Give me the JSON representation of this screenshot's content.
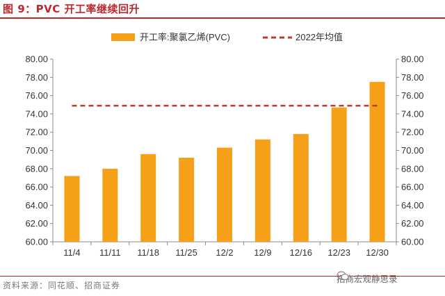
{
  "header": {
    "title": "图 9：PVC 开工率继续回升"
  },
  "footer": {
    "source": "资料来源：同花顺、招商证券",
    "watermark": "招商宏观静思录",
    "watermark_icon": "wechat-icon"
  },
  "colors": {
    "bar": "#f6a01a",
    "avg_line": "#c0392b",
    "title": "#c0272d"
  },
  "chart_data": {
    "type": "bar",
    "categories": [
      "11/4",
      "11/11",
      "11/18",
      "11/25",
      "12/2",
      "12/9",
      "12/16",
      "12/23",
      "12/30"
    ],
    "series": [
      {
        "name": "开工率:聚氯乙烯(PVC)",
        "type": "bar",
        "values": [
          67.2,
          68.0,
          69.6,
          69.2,
          70.3,
          71.2,
          71.8,
          74.7,
          77.5
        ]
      },
      {
        "name": "2022年均值",
        "type": "line",
        "style": "dashed",
        "values": [
          74.9,
          74.9,
          74.9,
          74.9,
          74.9,
          74.9,
          74.9,
          74.9,
          74.9
        ]
      }
    ],
    "ylim": [
      60,
      80
    ],
    "y_ticks": [
      "60.00",
      "62.00",
      "64.00",
      "66.00",
      "68.00",
      "70.00",
      "72.00",
      "74.00",
      "76.00",
      "78.00",
      "80.00"
    ],
    "y2_ticks": [
      "60.00",
      "62.00",
      "64.00",
      "66.00",
      "68.00",
      "70.00",
      "72.00",
      "74.00",
      "76.00",
      "78.00",
      "80.00"
    ],
    "legend_position": "top-center",
    "grid": false
  }
}
